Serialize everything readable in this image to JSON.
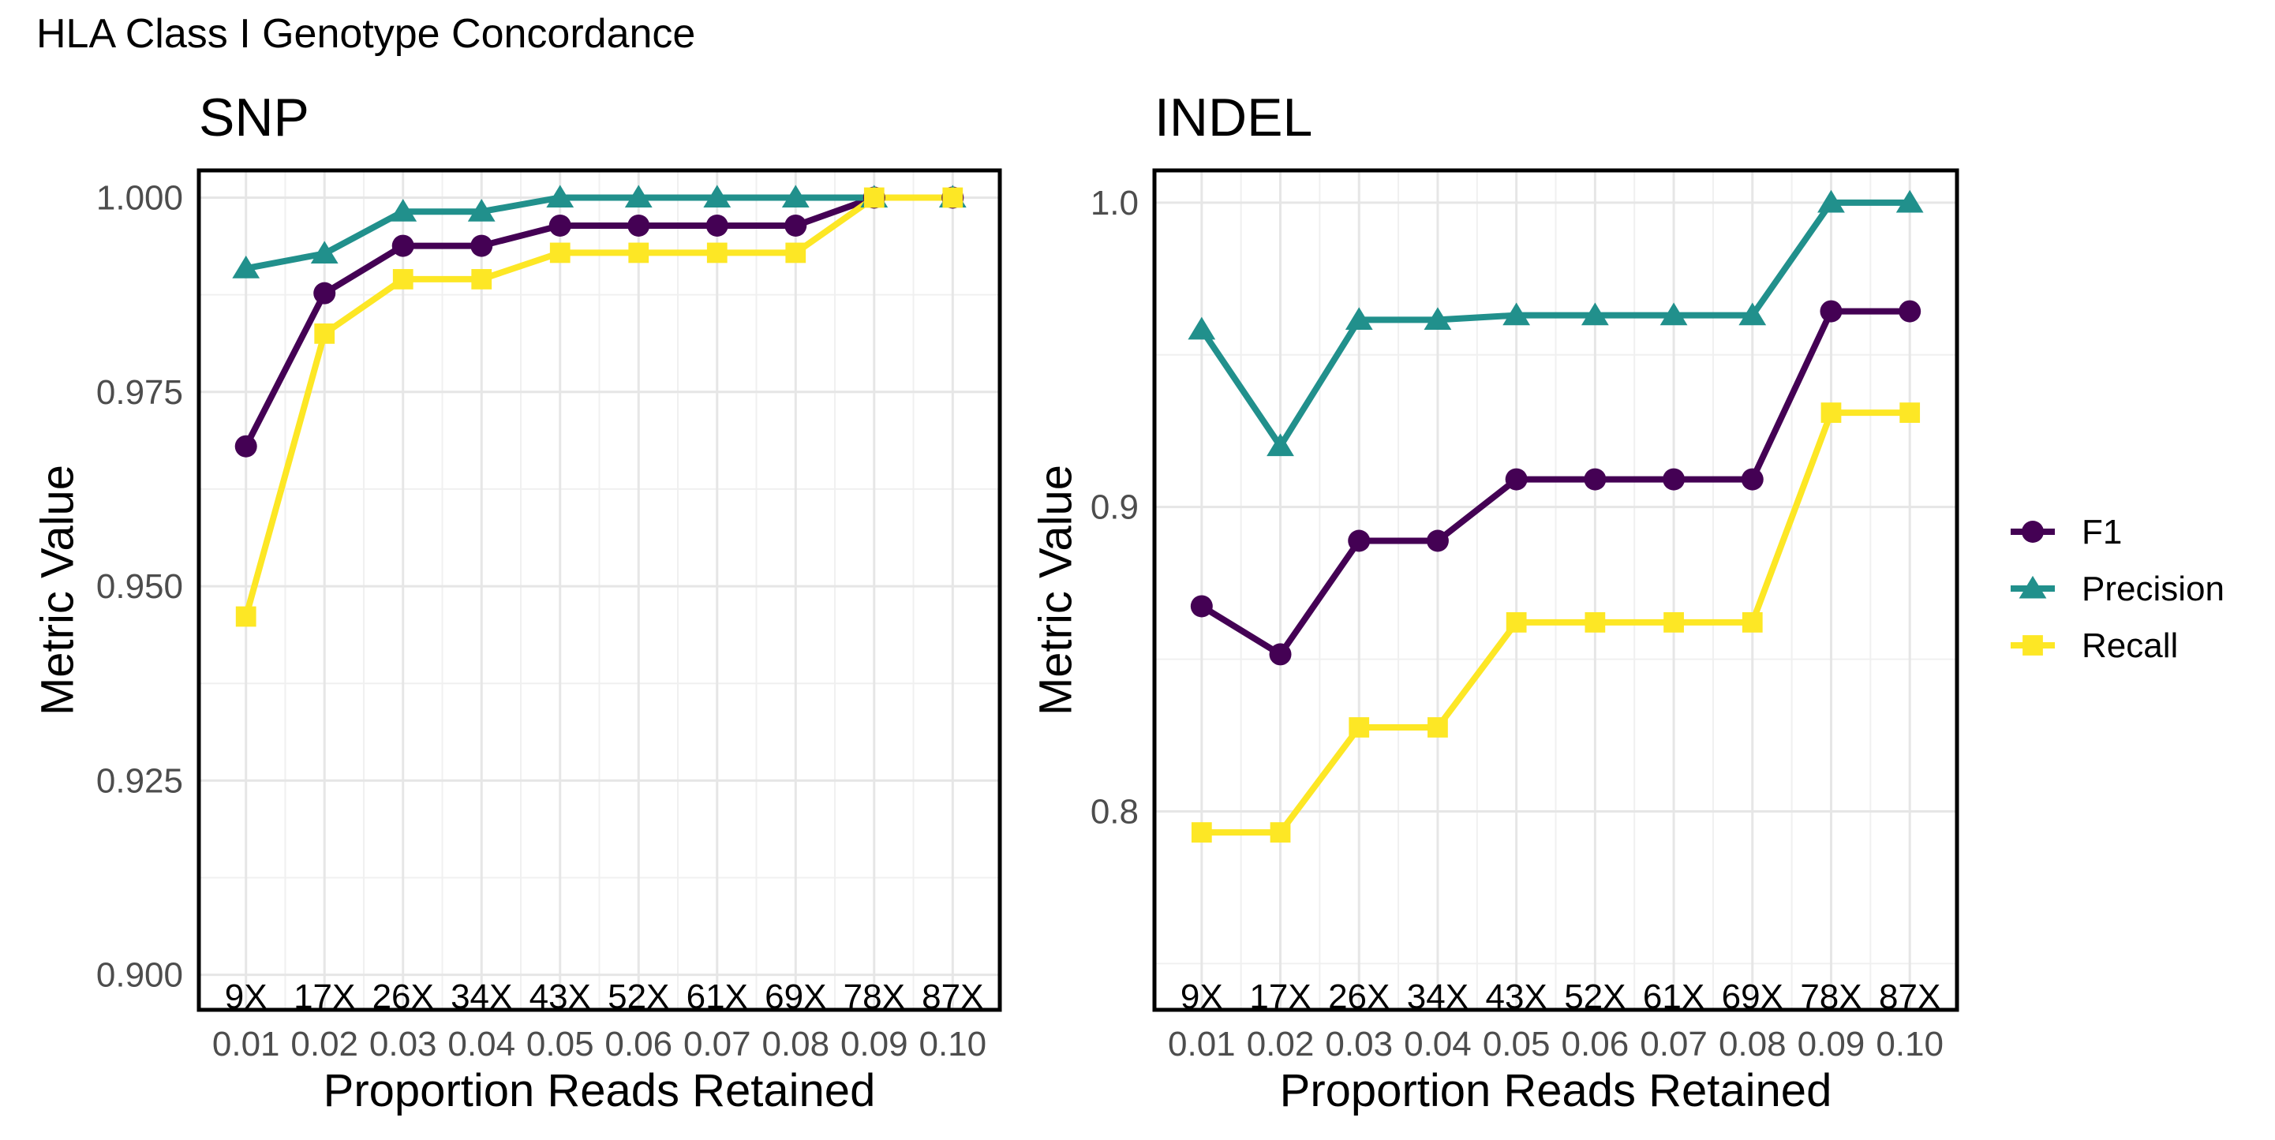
{
  "figure_title": "HLA Class I Genotype Concordance",
  "colors": {
    "F1": "#440154",
    "Precision": "#21908C",
    "Recall": "#FDE725"
  },
  "legend": [
    {
      "name": "F1",
      "shape": "circle"
    },
    {
      "name": "Precision",
      "shape": "triangle"
    },
    {
      "name": "Recall",
      "shape": "square"
    }
  ],
  "chart_data": [
    {
      "type": "line",
      "title": "SNP",
      "xlabel": "Proportion Reads Retained",
      "ylabel": "Metric Value",
      "x": [
        "0.01",
        "0.02",
        "0.03",
        "0.04",
        "0.05",
        "0.06",
        "0.07",
        "0.08",
        "0.09",
        "0.10"
      ],
      "coverage_labels": [
        "9X",
        "17X",
        "26X",
        "34X",
        "43X",
        "52X",
        "61X",
        "69X",
        "78X",
        "87X"
      ],
      "ylim": [
        0.8955,
        1.0035
      ],
      "yticks": [
        0.9,
        0.925,
        0.95,
        0.975,
        1.0
      ],
      "ytick_labels": [
        "0.900",
        "0.925",
        "0.950",
        "0.975",
        "1.000"
      ],
      "series": [
        {
          "name": "F1",
          "values": [
            0.968,
            0.9877,
            0.9938,
            0.9938,
            0.9964,
            0.9964,
            0.9964,
            0.9964,
            1.0,
            1.0
          ]
        },
        {
          "name": "Precision",
          "values": [
            0.9909,
            0.9928,
            0.9982,
            0.9982,
            1.0,
            1.0,
            1.0,
            1.0,
            1.0,
            1.0
          ]
        },
        {
          "name": "Recall",
          "values": [
            0.9461,
            0.9825,
            0.9895,
            0.9895,
            0.9929,
            0.9929,
            0.9929,
            0.9929,
            1.0,
            1.0
          ]
        }
      ],
      "grid": true
    },
    {
      "type": "line",
      "title": "INDEL",
      "xlabel": "Proportion Reads Retained",
      "ylabel": "Metric Value",
      "x": [
        "0.01",
        "0.02",
        "0.03",
        "0.04",
        "0.05",
        "0.06",
        "0.07",
        "0.08",
        "0.09",
        "0.10"
      ],
      "coverage_labels": [
        "9X",
        "17X",
        "26X",
        "34X",
        "43X",
        "52X",
        "61X",
        "69X",
        "78X",
        "87X"
      ],
      "ylim": [
        0.7348,
        1.0106
      ],
      "yticks": [
        0.8,
        0.9,
        1.0
      ],
      "ytick_labels": [
        "0.8",
        "0.9",
        "1.0"
      ],
      "series": [
        {
          "name": "F1",
          "values": [
            0.8674,
            0.8516,
            0.8889,
            0.8889,
            0.9091,
            0.9091,
            0.9091,
            0.9091,
            0.9643,
            0.9643
          ]
        },
        {
          "name": "Precision",
          "values": [
            0.9583,
            0.92,
            0.9615,
            0.9615,
            0.963,
            0.963,
            0.963,
            0.963,
            1.0,
            1.0
          ]
        },
        {
          "name": "Recall",
          "values": [
            0.7931,
            0.7931,
            0.8276,
            0.8276,
            0.8621,
            0.8621,
            0.8621,
            0.8621,
            0.931,
            0.931
          ]
        }
      ],
      "grid": true
    }
  ]
}
